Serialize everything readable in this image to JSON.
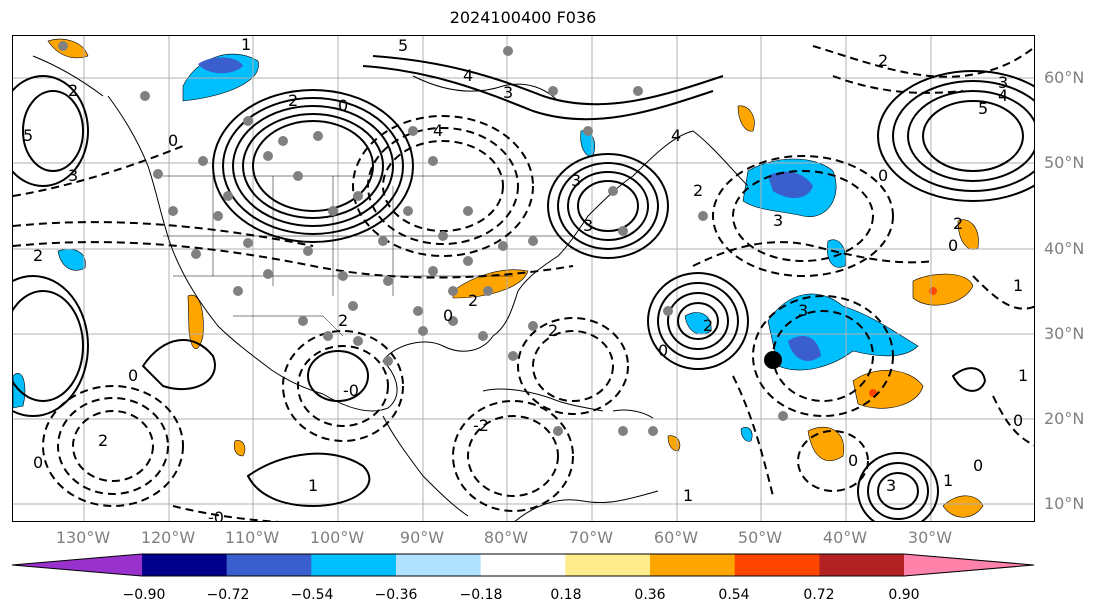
{
  "title": "2024100400 F036",
  "longitude_labels": [
    "130°W",
    "120°W",
    "110°W",
    "100°W",
    "90°W",
    "80°W",
    "70°W",
    "60°W",
    "50°W",
    "40°W",
    "30°W"
  ],
  "latitude_labels": [
    "60°N",
    "50°N",
    "40°N",
    "30°N",
    "20°N",
    "10°N"
  ],
  "colorbar": {
    "tick_labels": [
      "−0.90",
      "−0.72",
      "−0.54",
      "−0.36",
      "−0.18",
      "0.18",
      "0.36",
      "0.54",
      "0.72",
      "0.90"
    ],
    "colors": [
      "#9932cc",
      "#00008b",
      "#3a5fcd",
      "#00bfff",
      "#b0e2ff",
      "#ffffff",
      "#ffec8b",
      "#ffa500",
      "#ff4500",
      "#b22222",
      "#ff82ab"
    ]
  },
  "marker": {
    "label": "storm-center",
    "lon": -51,
    "lat": 27
  },
  "contour_labels": [
    "1",
    "5",
    "2",
    "4",
    "3",
    "0",
    "-0",
    "2",
    "3",
    "0",
    "4",
    "5",
    "4",
    "3",
    "3",
    "2",
    "1",
    "3",
    "0",
    "2",
    "2",
    "5",
    "3",
    "2",
    "0",
    "2",
    "0",
    "1",
    "0",
    "0",
    "1",
    "3",
    "1",
    "0",
    "2",
    "0",
    "-2",
    "-0",
    "3",
    "0",
    "2",
    "2",
    "2",
    "4",
    "1",
    "0"
  ]
}
